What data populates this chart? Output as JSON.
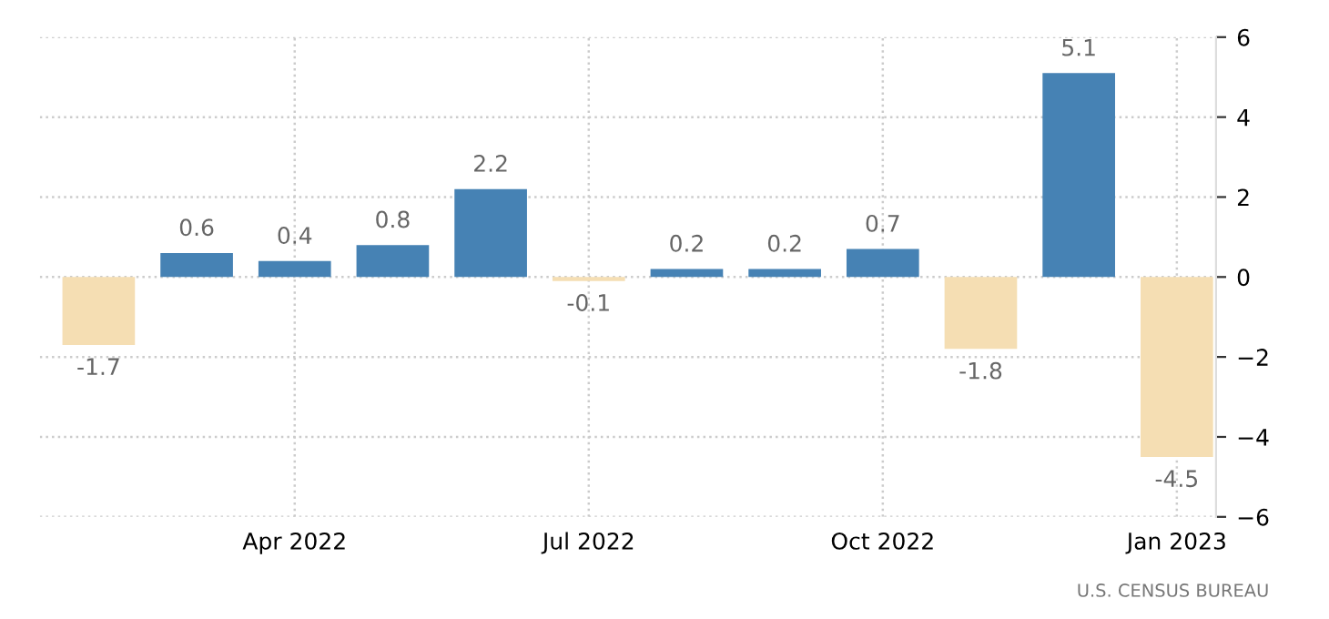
{
  "chart_data": {
    "type": "bar",
    "categories": [
      null,
      null,
      "Apr 2022",
      null,
      null,
      "Jul 2022",
      null,
      null,
      "Oct 2022",
      null,
      null,
      "Jan 2023"
    ],
    "values": [
      -1.7,
      0.6,
      0.4,
      0.8,
      2.2,
      -0.1,
      0.2,
      0.2,
      0.7,
      -1.8,
      5.1,
      -4.5
    ],
    "colors": [
      "#f5deb3",
      "#4682b4",
      "#4682b4",
      "#4682b4",
      "#4682b4",
      "#f5deb3",
      "#4682b4",
      "#4682b4",
      "#4682b4",
      "#f5deb3",
      "#4682b4",
      "#f5deb3"
    ],
    "ylim": [
      -6,
      6
    ],
    "yticks": [
      -6,
      -4,
      -2,
      0,
      2,
      4,
      6
    ],
    "grid": true,
    "data_labels": true,
    "annotations": [
      "U.S. CENSUS BUREAU"
    ]
  }
}
